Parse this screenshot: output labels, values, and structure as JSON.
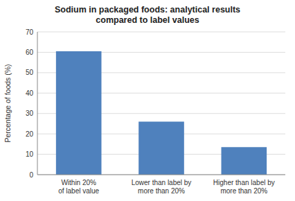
{
  "chart_data": {
    "type": "bar",
    "title": "Sodium in packaged foods: analytical results\ncompared to label values",
    "categories": [
      "Within 20%\nof label value",
      "Lower than label by\nmore than 20%",
      "Higher than label by\nmore than 20%"
    ],
    "values": [
      60.5,
      26.0,
      13.5
    ],
    "color": "#4f81bd",
    "ylabel": "Percentage of foods (%)",
    "ylim": [
      0,
      70
    ],
    "yticks": [
      0,
      10,
      20,
      30,
      40,
      50,
      60,
      70
    ],
    "grid": true
  }
}
